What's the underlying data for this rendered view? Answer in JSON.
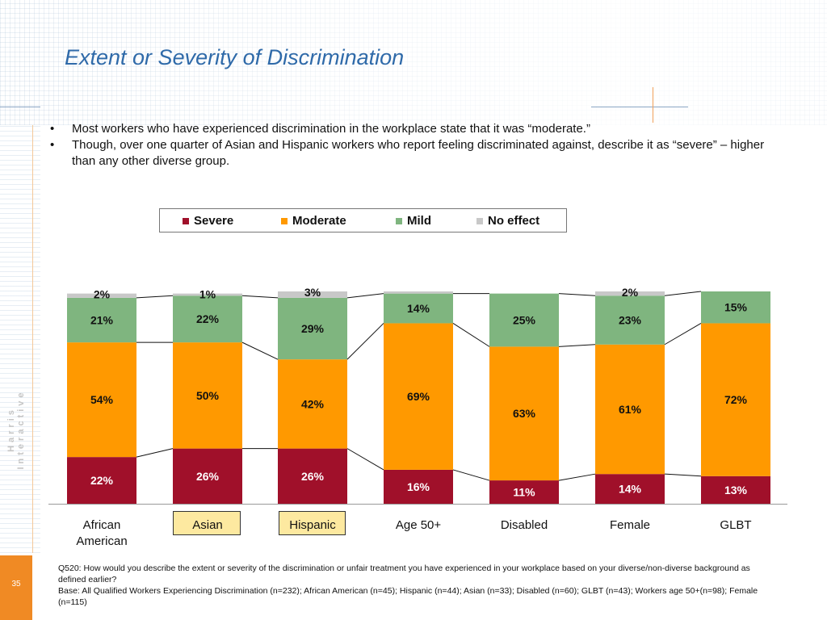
{
  "slide": {
    "title": "Extent or Severity of Discrimination",
    "bullets": [
      "Most workers who have experienced discrimination in the workplace state that it was “moderate.”",
      "Though, over one quarter of Asian and Hispanic workers who report feeling discriminated against, describe it as “severe” – higher than any other diverse group."
    ],
    "bullet_symbol": "•",
    "brand_text": "Harris Interactive",
    "page_number": "35",
    "footnote_question": "Q520: How would you describe the extent or severity of the discrimination or unfair treatment you have experienced in your workplace based on your diverse/non-diverse background as defined earlier?",
    "footnote_base": "Base: All Qualified Workers Experiencing Discrimination (n=232); African American (n=45); Hispanic (n=44); Asian (n=33); Disabled (n=60); GLBT (n=43); Workers age 50+(n=98); Female (n=115)"
  },
  "colors": {
    "title": "#2f6aa9",
    "Severe": "#a0102a",
    "Moderate": "#ff9900",
    "Mild": "#7fb57f",
    "No effect": "#c8c8c8",
    "highlight_box": "#fde9a0",
    "page_box": "#f08a24"
  },
  "chart_data": {
    "type": "bar",
    "stacked": true,
    "categories": [
      "African American",
      "Asian",
      "Hispanic",
      "Age 50+",
      "Disabled",
      "Female",
      "GLBT"
    ],
    "highlighted_categories": [
      "Asian",
      "Hispanic"
    ],
    "series": [
      {
        "name": "Severe",
        "values": [
          22,
          26,
          26,
          16,
          11,
          14,
          13
        ]
      },
      {
        "name": "Moderate",
        "values": [
          54,
          50,
          42,
          69,
          63,
          61,
          72
        ]
      },
      {
        "name": "Mild",
        "values": [
          21,
          22,
          29,
          14,
          25,
          23,
          15
        ]
      },
      {
        "name": "No effect",
        "values": [
          2,
          1,
          3,
          1,
          0,
          2,
          0
        ]
      }
    ],
    "labels": [
      [
        "22%",
        "54%",
        "21%",
        "2%"
      ],
      [
        "26%",
        "50%",
        "22%",
        "1%"
      ],
      [
        "26%",
        "42%",
        "29%",
        "3%"
      ],
      [
        "16%",
        "69%",
        "14%",
        ""
      ],
      [
        "11%",
        "63%",
        "25%",
        ""
      ],
      [
        "14%",
        "61%",
        "23%",
        "2%"
      ],
      [
        "13%",
        "72%",
        "15%",
        ""
      ]
    ],
    "ylim": [
      0,
      100
    ],
    "legend_position": "top",
    "grid": false,
    "series_lines": true
  }
}
